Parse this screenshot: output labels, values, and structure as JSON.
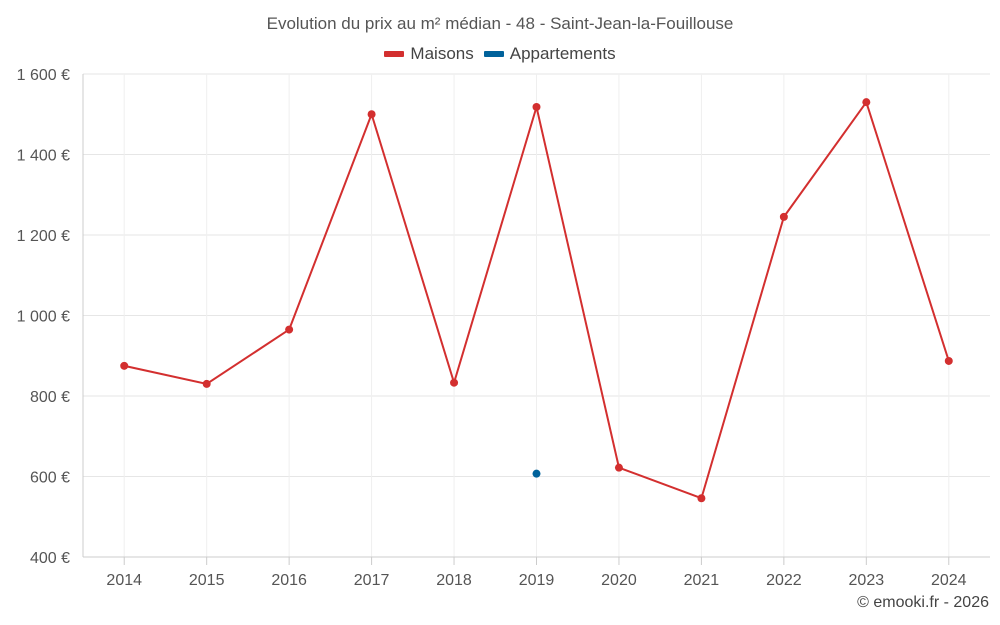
{
  "chart_data": {
    "type": "line",
    "title": "Evolution du prix au m² médian - 48 - Saint-Jean-la-Fouillouse",
    "categories": [
      "2014",
      "2015",
      "2016",
      "2017",
      "2018",
      "2019",
      "2020",
      "2021",
      "2022",
      "2023",
      "2024"
    ],
    "series": [
      {
        "name": "Maisons",
        "color": "#d32f2f",
        "values": [
          875,
          830,
          965,
          1500,
          833,
          1518,
          622,
          546,
          1245,
          1530,
          887
        ]
      },
      {
        "name": "Appartements",
        "color": "#00629b",
        "values": [
          null,
          null,
          null,
          null,
          null,
          607,
          null,
          null,
          null,
          null,
          null
        ]
      }
    ],
    "ylim": [
      400,
      1600
    ],
    "yticks": [
      400,
      600,
      800,
      1000,
      1200,
      1400,
      1600
    ],
    "ytick_labels": [
      "400 €",
      "600 €",
      "800 €",
      "1 000 €",
      "1 200 €",
      "1 400 €",
      "1 600 €"
    ],
    "xlabel": "",
    "ylabel": "",
    "grid": true,
    "legend_position": "top-center"
  },
  "watermark": "© emooki.fr - 2026"
}
